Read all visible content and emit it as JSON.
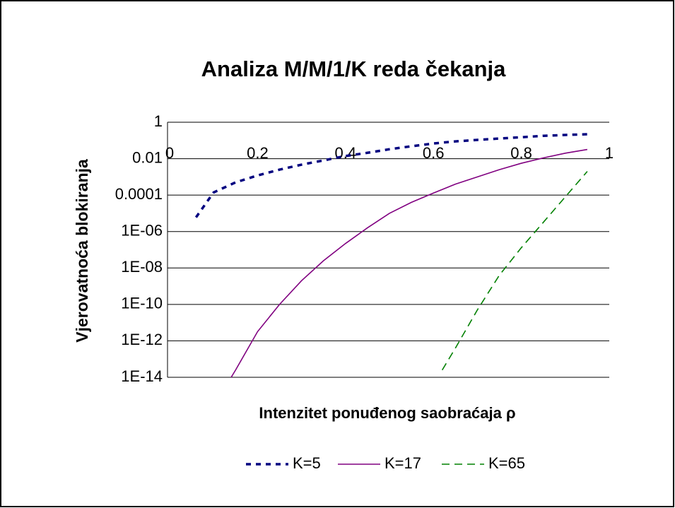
{
  "chart_data": {
    "type": "line",
    "title": "Analiza M/M/1/K reda čekanja",
    "x_label": "Intenzitet ponuđenog saobraćaja ρ",
    "y_label": "Vjerovatnoća blokiranja",
    "xlim": [
      0,
      1
    ],
    "xticks": [
      0,
      0.2,
      0.4,
      0.6,
      0.8,
      1
    ],
    "ylim": [
      1e-14,
      1
    ],
    "y_scale": "log",
    "yticks": [
      1,
      0.01,
      0.0001,
      {
        "value": 1e-06,
        "label": "1E-06"
      },
      {
        "value": 1e-08,
        "label": "1E-08"
      },
      {
        "value": 1e-10,
        "label": "1E-10"
      },
      {
        "value": 1e-12,
        "label": "1E-12"
      },
      {
        "value": 1e-14,
        "label": "1E-14"
      }
    ],
    "grid": true,
    "legend": "bottom",
    "series": [
      {
        "name": "K=5",
        "color": "#000080",
        "style": "dotted",
        "x": [
          0.06,
          0.1,
          0.15,
          0.2,
          0.25,
          0.3,
          0.35,
          0.4,
          0.45,
          0.5,
          0.55,
          0.6,
          0.65,
          0.7,
          0.75,
          0.8,
          0.85,
          0.9,
          0.95
        ],
        "values": [
          6e-06,
          0.00014,
          0.0005,
          0.0012,
          0.0025,
          0.0047,
          0.008,
          0.014,
          0.021,
          0.033,
          0.048,
          0.068,
          0.089,
          0.107,
          0.128,
          0.15,
          0.18,
          0.2,
          0.22
        ]
      },
      {
        "name": "K=17",
        "color": "#800080",
        "style": "solid",
        "x": [
          0.14,
          0.15,
          0.2,
          0.25,
          0.3,
          0.35,
          0.4,
          0.45,
          0.5,
          0.55,
          0.6,
          0.65,
          0.7,
          0.75,
          0.8,
          0.85,
          0.9,
          0.95
        ],
        "values": [
          1e-14,
          2.5e-14,
          3.2e-12,
          1e-10,
          2e-09,
          2.5e-08,
          2.2e-07,
          1.6e-06,
          1e-05,
          4e-05,
          0.00013,
          0.0004,
          0.001,
          0.0025,
          0.0056,
          0.011,
          0.02,
          0.032
        ]
      },
      {
        "name": "K=65",
        "color": "#008000",
        "style": "dashed",
        "x": [
          0.62,
          0.65,
          0.7,
          0.75,
          0.8,
          0.85,
          0.9,
          0.95
        ],
        "values": [
          2.5e-14,
          4e-13,
          5e-11,
          4e-09,
          1.3e-07,
          3.2e-06,
          8e-05,
          0.002
        ]
      }
    ]
  }
}
